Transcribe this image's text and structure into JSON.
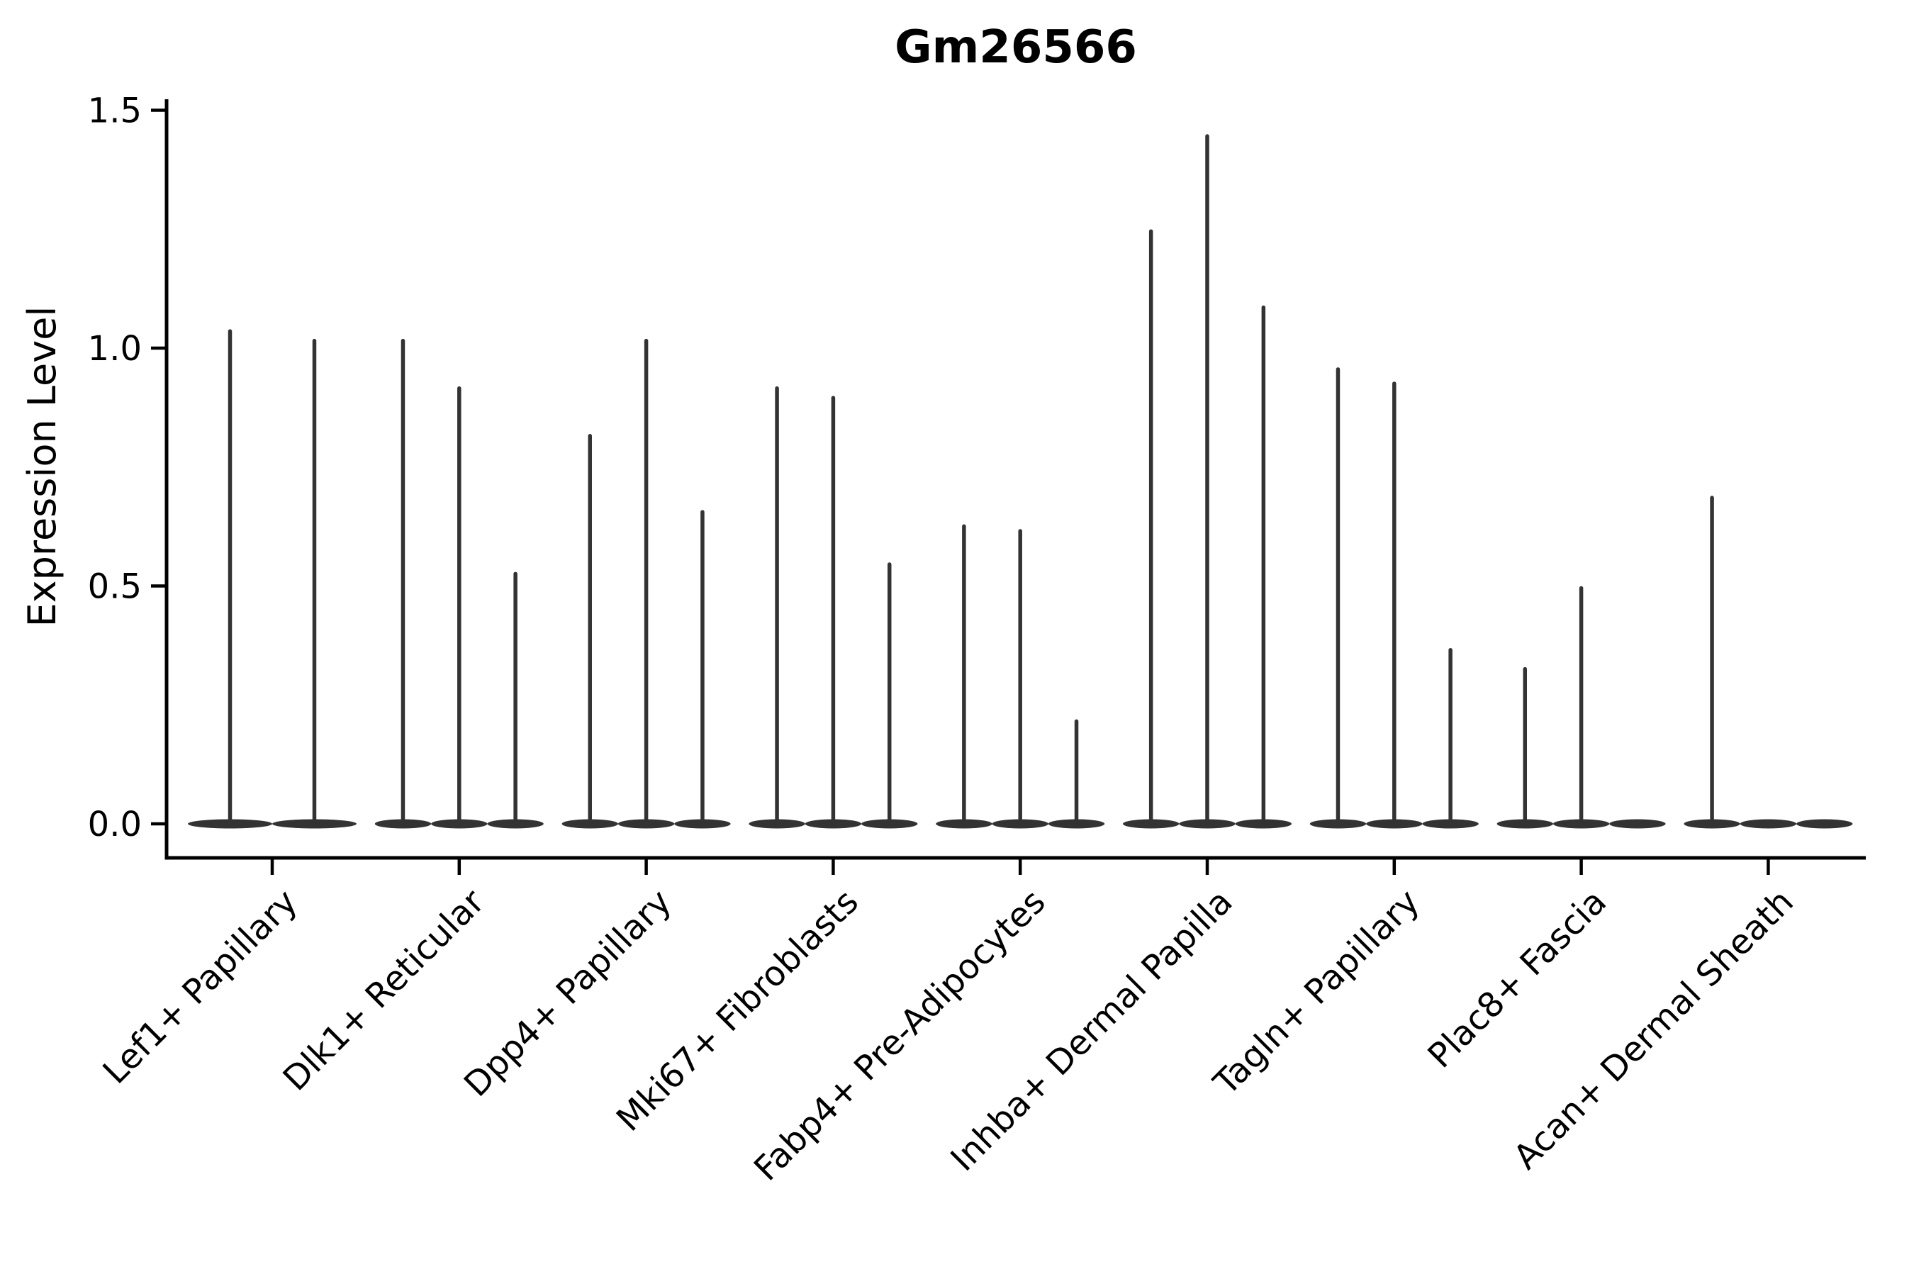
{
  "figure": {
    "title": "Gm26566",
    "background_color": "#ffffff"
  },
  "chart_data": {
    "type": "violin",
    "title": "Gm26566",
    "xlabel": "",
    "ylabel": "Expression Level",
    "ylim": [
      0,
      1.5
    ],
    "yticks": [
      0.0,
      0.5,
      1.0,
      1.5
    ],
    "ytick_labels": [
      "0.0",
      "0.5",
      "1.0",
      "1.5"
    ],
    "grid": false,
    "legend_position": "none",
    "x_tick_label_rotation_deg": 45,
    "violin_color": "#333333",
    "axis_color": "#000000",
    "categories": [
      "Lef1+ Papillary",
      "Dlk1+ Reticular",
      "Dpp4+ Papillary",
      "Mki67+ Fibroblasts",
      "Fabp4+ Pre-Adipocytes",
      "Inhba+ Dermal Papilla",
      "Tagln+ Papillary",
      "Plac8+ Fascia",
      "Acan+ Dermal Sheath"
    ],
    "groups": [
      {
        "category": "Lef1+ Papillary",
        "violin_maxima": [
          1.04,
          1.02
        ]
      },
      {
        "category": "Dlk1+ Reticular",
        "violin_maxima": [
          1.02,
          0.92,
          0.53
        ]
      },
      {
        "category": "Dpp4+ Papillary",
        "violin_maxima": [
          0.82,
          1.02,
          0.66
        ]
      },
      {
        "category": "Mki67+ Fibroblasts",
        "violin_maxima": [
          0.92,
          0.9,
          0.55
        ]
      },
      {
        "category": "Fabp4+ Pre-Adipocytes",
        "violin_maxima": [
          0.63,
          0.62,
          0.22
        ]
      },
      {
        "category": "Inhba+ Dermal Papilla",
        "violin_maxima": [
          1.25,
          1.45,
          1.09
        ]
      },
      {
        "category": "Tagln+ Papillary",
        "violin_maxima": [
          0.96,
          0.93,
          0.37
        ]
      },
      {
        "category": "Plac8+ Fascia",
        "violin_maxima": [
          0.33,
          0.5,
          0
        ]
      },
      {
        "category": "Acan+ Dermal Sheath",
        "violin_maxima": [
          0.69,
          0,
          0
        ]
      }
    ],
    "description_of_marks": "Each group shows thin violins: a flat wide base at expression 0 and a thin vertical density spike rising to the listed maximum; maxima of 0 indicate a flat violin with no spike."
  }
}
